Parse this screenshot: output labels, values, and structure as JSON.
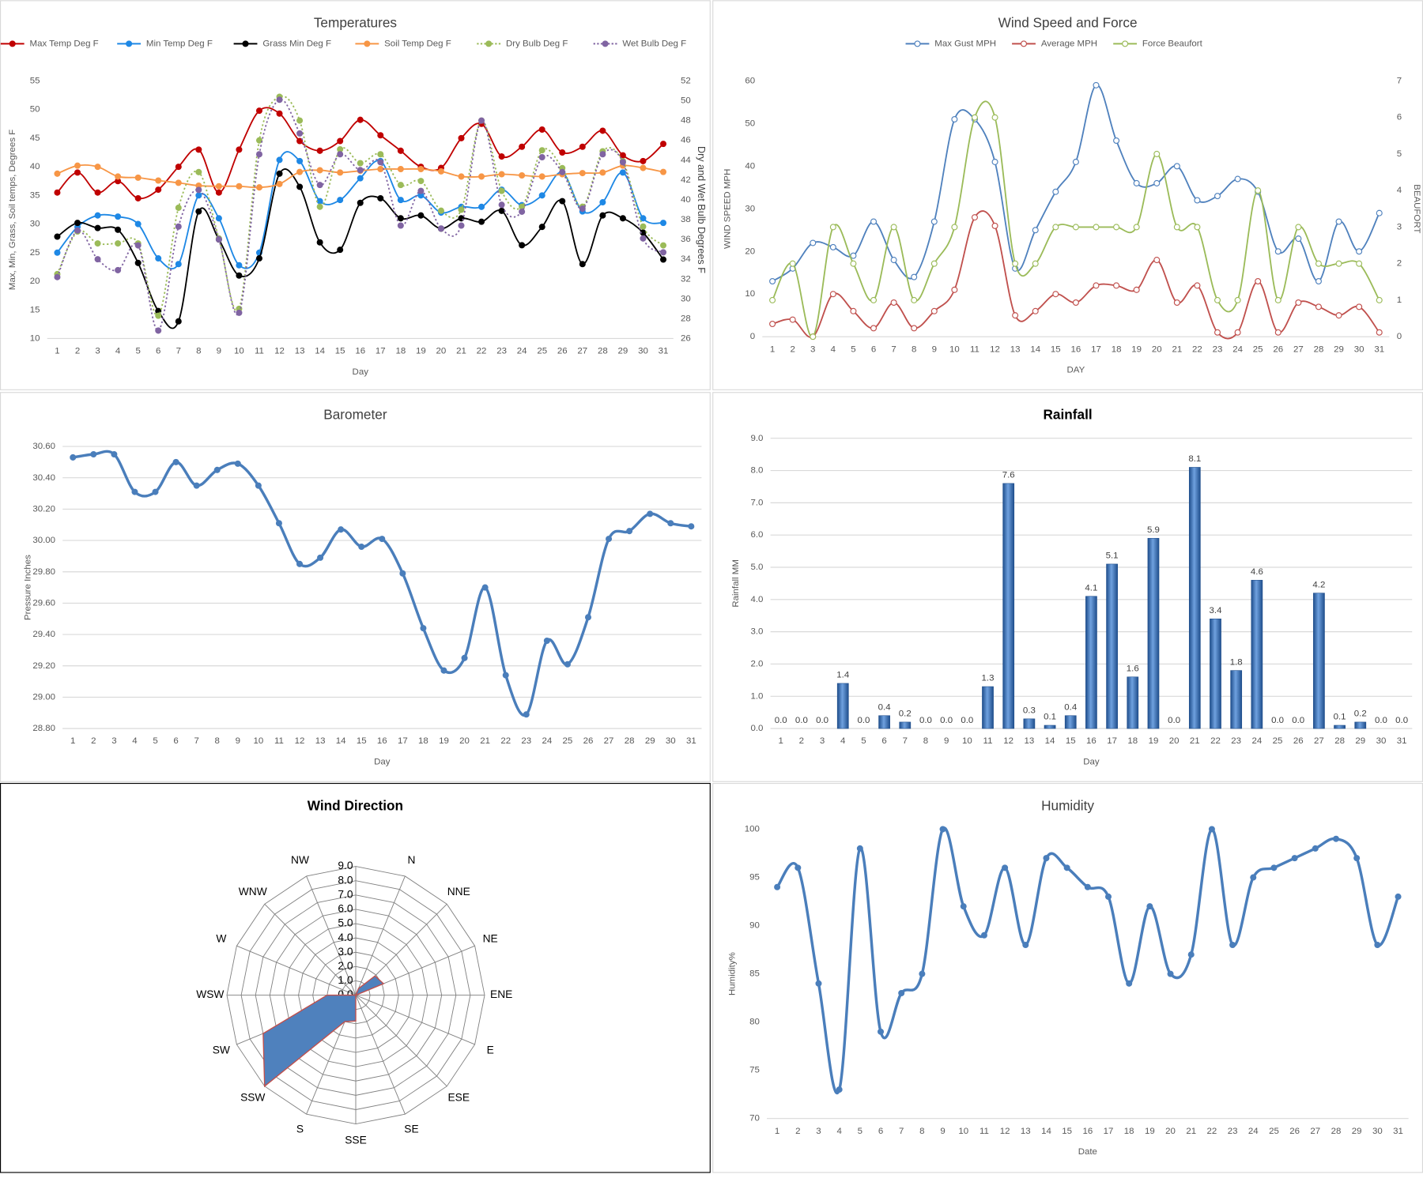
{
  "chart_data": [
    {
      "type": "line",
      "title": "Temperatures",
      "smooth": true,
      "grid": false,
      "legend": "top",
      "x_label": "Day",
      "y_label": "Max, Min, Grass, Soil temps, Degrees F",
      "y2_label": "Dry and Wet Bulb Degrees F",
      "categories": [
        1,
        2,
        3,
        4,
        5,
        6,
        7,
        8,
        9,
        10,
        11,
        12,
        13,
        14,
        15,
        16,
        17,
        18,
        19,
        20,
        21,
        22,
        23,
        24,
        25,
        26,
        27,
        28,
        29,
        30,
        31
      ],
      "ylim": [
        10,
        55
      ],
      "yticks": [
        10,
        15,
        20,
        25,
        30,
        35,
        40,
        45,
        50,
        55
      ],
      "y2lim": [
        26,
        52
      ],
      "y2ticks": [
        26,
        28,
        30,
        32,
        34,
        36,
        38,
        40,
        42,
        44,
        46,
        48,
        50,
        52
      ],
      "series": [
        {
          "name": "Max Temp Deg F",
          "color": "#c00000",
          "values": [
            35.5,
            39,
            35.5,
            37.5,
            34.5,
            36,
            40,
            43,
            35.5,
            43,
            49.8,
            49.3,
            44.5,
            42.8,
            44.5,
            48.2,
            45.5,
            42.8,
            40,
            39.8,
            45,
            47.5,
            41.8,
            43.5,
            46.5,
            42.5,
            43.5,
            46.3,
            42,
            41,
            44
          ]
        },
        {
          "name": "Min Temp Deg F",
          "color": "#1e88e5",
          "values": [
            25,
            29.5,
            31.5,
            31.3,
            30,
            24,
            23,
            35,
            31,
            22.8,
            25,
            41.2,
            41,
            34,
            34.2,
            38,
            41,
            34.2,
            35,
            32,
            33,
            33,
            36,
            33.3,
            35,
            39,
            32.2,
            33.8,
            39,
            31,
            30.2
          ]
        },
        {
          "name": "Grass Min Deg F",
          "color": "#000000",
          "values": [
            27.8,
            30.2,
            29.3,
            29,
            23.2,
            14.8,
            13,
            32.2,
            27.3,
            21,
            24,
            38.8,
            36.5,
            26.8,
            25.5,
            33.7,
            34.5,
            31,
            31.5,
            29.2,
            31,
            30.4,
            32.3,
            26.3,
            29.5,
            34,
            23,
            31.5,
            31,
            28.5,
            23.8
          ]
        },
        {
          "name": "Soil Temp Deg F",
          "color": "#f79646",
          "values": [
            38.8,
            40.2,
            40,
            38.3,
            38.1,
            37.6,
            37.2,
            36.7,
            36.6,
            36.6,
            36.4,
            37,
            39.1,
            39.4,
            39,
            39.3,
            39.6,
            39.6,
            39.6,
            39.2,
            38.3,
            38.3,
            38.7,
            38.5,
            38.3,
            38.7,
            38.9,
            39,
            40.2,
            39.8,
            39.1
          ]
        },
        {
          "name": "Dry Bulb Deg F",
          "color": "#9bbb59",
          "dash": true,
          "axis": "y2",
          "values": [
            32.5,
            36.8,
            35.6,
            35.6,
            35.6,
            28.3,
            39.2,
            42.8,
            36.1,
            29,
            46,
            50.4,
            48,
            39.3,
            45.1,
            43.7,
            44.6,
            41.5,
            41.9,
            38.9,
            39,
            48,
            40.9,
            39.3,
            45,
            43.2,
            39.3,
            44.9,
            43.9,
            37.3,
            35.4
          ]
        },
        {
          "name": "Wet Bulb Deg F",
          "color": "#8064a2",
          "dash": true,
          "axis": "y2",
          "values": [
            32.2,
            36.9,
            34,
            32.9,
            35.4,
            26.8,
            37.3,
            41,
            36,
            28.6,
            44.6,
            50.1,
            46.7,
            41.5,
            44.6,
            43,
            43.8,
            37.4,
            40.9,
            37.1,
            37.4,
            48,
            39.5,
            38.8,
            44.3,
            42.8,
            39.1,
            44.6,
            43.8,
            36.1,
            34.7
          ]
        }
      ]
    },
    {
      "type": "line",
      "title": "Wind Speed and Force",
      "smooth": true,
      "grid": false,
      "legend": "top",
      "hollow_markers": true,
      "x_label": "DAY",
      "y_label": "WIND SPEED MPH",
      "y2_label": "BEAUFORT",
      "categories": [
        1,
        2,
        3,
        4,
        5,
        6,
        7,
        8,
        9,
        10,
        11,
        12,
        13,
        14,
        15,
        16,
        17,
        18,
        19,
        20,
        21,
        22,
        23,
        24,
        25,
        26,
        27,
        28,
        29,
        30,
        31
      ],
      "ylim": [
        0,
        60
      ],
      "yticks": [
        0,
        10,
        20,
        30,
        40,
        50,
        60
      ],
      "y2lim": [
        0,
        7
      ],
      "y2ticks": [
        0,
        1,
        2,
        3,
        4,
        5,
        6,
        7
      ],
      "series": [
        {
          "name": "Max Gust MPH",
          "color": "#4f81bd",
          "values": [
            13,
            16,
            22,
            21,
            19,
            27,
            18,
            14,
            27,
            51,
            51,
            41,
            16,
            25,
            34,
            41,
            59,
            46,
            36,
            36,
            40,
            32,
            33,
            37,
            34,
            20,
            23,
            13,
            27,
            20,
            29
          ]
        },
        {
          "name": "Average MPH",
          "color": "#c0504d",
          "values": [
            3,
            4,
            0,
            10,
            6,
            2,
            8,
            2,
            6,
            11,
            28,
            26,
            5,
            6,
            10,
            8,
            12,
            12,
            11,
            18,
            8,
            12,
            1,
            1,
            13,
            1,
            8,
            7,
            5,
            7,
            1
          ]
        },
        {
          "name": "Force Beaufort",
          "color": "#9bbb59",
          "axis": "y2",
          "values": [
            1,
            2,
            0,
            3,
            2,
            1,
            3,
            1,
            2,
            3,
            6,
            6,
            2,
            2,
            3,
            3,
            3,
            3,
            3,
            5,
            3,
            3,
            1,
            1,
            4,
            1,
            3,
            2,
            2,
            2,
            1
          ]
        }
      ]
    },
    {
      "type": "line",
      "title": "Barometer",
      "smooth": true,
      "grid": true,
      "x_label": "Day",
      "y_label": "Pressure Inches",
      "categories": [
        1,
        2,
        3,
        4,
        5,
        6,
        7,
        8,
        9,
        10,
        11,
        12,
        13,
        14,
        15,
        16,
        17,
        18,
        19,
        20,
        21,
        22,
        23,
        24,
        25,
        26,
        27,
        28,
        29,
        30,
        31
      ],
      "ylim": [
        28.8,
        30.6
      ],
      "yticks": [
        {
          "value": 28.8,
          "label": "28.80"
        },
        {
          "value": 29,
          "label": "29.00"
        },
        {
          "value": 29.2,
          "label": "29.20"
        },
        {
          "value": 29.4,
          "label": "29.40"
        },
        {
          "value": 29.6,
          "label": "29.60"
        },
        {
          "value": 29.8,
          "label": "29.80"
        },
        {
          "value": 30,
          "label": "30.00"
        },
        {
          "value": 30.2,
          "label": "30.20"
        },
        {
          "value": 30.4,
          "label": "30.40"
        },
        {
          "value": 30.6,
          "label": "30.60"
        }
      ],
      "series": [
        {
          "color": "#4a7ebb",
          "values": [
            30.53,
            30.55,
            30.55,
            30.31,
            30.31,
            30.5,
            30.35,
            30.45,
            30.49,
            30.35,
            30.11,
            29.85,
            29.89,
            30.07,
            29.96,
            30.01,
            29.79,
            29.44,
            29.17,
            29.25,
            29.7,
            29.14,
            28.89,
            29.36,
            29.21,
            29.51,
            30.01,
            30.06,
            30.17,
            30.11,
            30.09
          ]
        }
      ]
    },
    {
      "type": "bar",
      "title": "Rainfall",
      "grid": true,
      "x_label": "Day",
      "y_label": "Rainfall MM",
      "color": "#2e6bb8",
      "categories": [
        1,
        2,
        3,
        4,
        5,
        6,
        7,
        8,
        9,
        10,
        11,
        12,
        13,
        14,
        15,
        16,
        17,
        18,
        19,
        20,
        21,
        22,
        23,
        24,
        25,
        26,
        27,
        28,
        29,
        30,
        31
      ],
      "ylim": [
        0,
        9
      ],
      "yticks": [
        {
          "value": 0,
          "label": "0.0"
        },
        {
          "value": 1,
          "label": "1.0"
        },
        {
          "value": 2,
          "label": "2.0"
        },
        {
          "value": 3,
          "label": "3.0"
        },
        {
          "value": 4,
          "label": "4.0"
        },
        {
          "value": 5,
          "label": "5.0"
        },
        {
          "value": 6,
          "label": "6.0"
        },
        {
          "value": 7,
          "label": "7.0"
        },
        {
          "value": 8,
          "label": "8.0"
        },
        {
          "value": 9,
          "label": "9.0"
        }
      ],
      "values": [
        0,
        0,
        0,
        1.4,
        0,
        0.4,
        0.2,
        0,
        0,
        0,
        1.3,
        7.6,
        0.3,
        0.1,
        0.4,
        4.1,
        5.1,
        1.6,
        5.9,
        0,
        8.1,
        3.4,
        1.8,
        4.6,
        0,
        0,
        4.2,
        0.1,
        0.2,
        0,
        0
      ],
      "value_labels": [
        "0.0",
        "0.0",
        "0.0",
        "1.4",
        "0.0",
        "0.4",
        "0.2",
        "0.0",
        "0.0",
        "0.0",
        "1.3",
        "7.6",
        "0.3",
        "0.1",
        "0.4",
        "4.1",
        "5.1",
        "1.6",
        "5.9",
        "0.0",
        "8.1",
        "3.4",
        "1.8",
        "4.6",
        "0.0",
        "0.0",
        "4.2",
        "0.1",
        "0.2",
        "0.0",
        "0.0"
      ]
    },
    {
      "type": "radar",
      "title": "Wind Direction",
      "color": "#4f81bd",
      "line_color": "#c0504d",
      "categories": [
        null,
        "N",
        "NNE",
        "NE",
        "ENE",
        "E",
        "ESE",
        "SE",
        "SSE",
        "S",
        "SSW",
        "SW",
        "WSW",
        "W",
        "WNW",
        "NW"
      ],
      "values": [
        0,
        0.5,
        1.9,
        2.1,
        0,
        0,
        0,
        0,
        1.8,
        2,
        9,
        7,
        2,
        0,
        0,
        0
      ],
      "ylim": [
        0,
        9
      ],
      "yticks": [
        {
          "value": 0,
          "label": "0.0"
        },
        {
          "value": 1,
          "label": "1.0"
        },
        {
          "value": 2,
          "label": "2.0"
        },
        {
          "value": 3,
          "label": "3.0"
        },
        {
          "value": 4,
          "label": "4.0"
        },
        {
          "value": 5,
          "label": "5.0"
        },
        {
          "value": 6,
          "label": "6.0"
        },
        {
          "value": 7,
          "label": "7.0"
        },
        {
          "value": 8,
          "label": "8.0"
        },
        {
          "value": 9,
          "label": "9.0"
        }
      ]
    },
    {
      "type": "line",
      "title": "Humidity",
      "smooth": true,
      "grid": false,
      "x_label": "Date",
      "y_label": "Humidity%",
      "categories": [
        1,
        2,
        3,
        4,
        5,
        6,
        7,
        8,
        9,
        10,
        11,
        12,
        13,
        14,
        15,
        16,
        17,
        18,
        19,
        20,
        21,
        22,
        23,
        24,
        25,
        26,
        27,
        28,
        29,
        30,
        31
      ],
      "ylim": [
        70,
        100
      ],
      "yticks": [
        70,
        75,
        80,
        85,
        90,
        95,
        100
      ],
      "series": [
        {
          "color": "#4a7ebb",
          "values": [
            94,
            96,
            84,
            73,
            98,
            79,
            83,
            85,
            100,
            92,
            89,
            96,
            88,
            97,
            96,
            94,
            93,
            84,
            92,
            85,
            87,
            100,
            88,
            95,
            96,
            97,
            98,
            99,
            97,
            88,
            93
          ]
        }
      ]
    }
  ]
}
